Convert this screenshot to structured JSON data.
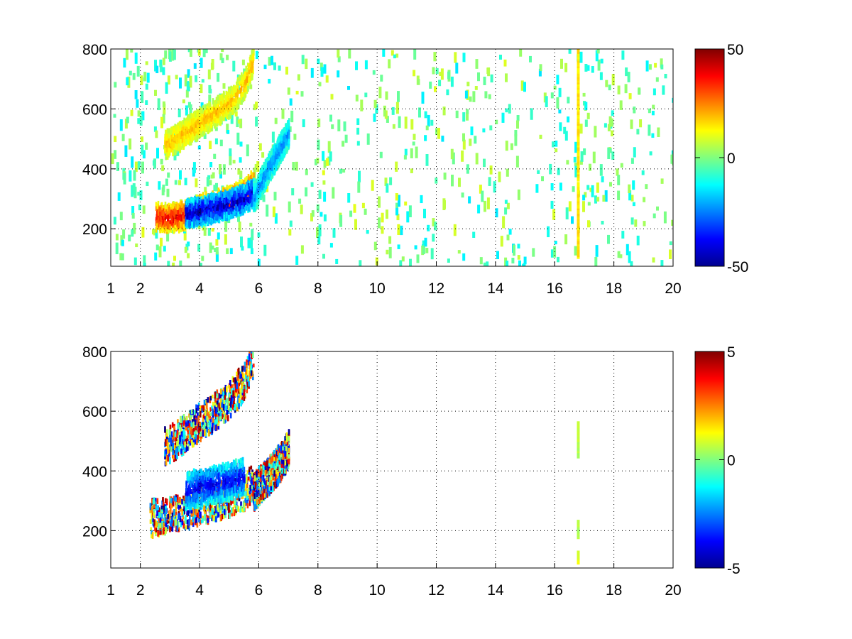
{
  "chart_data": [
    {
      "type": "heatmap",
      "panel": "top",
      "xlim": [
        1,
        20
      ],
      "ylim": [
        75,
        800
      ],
      "xticks": [
        1,
        2,
        4,
        6,
        8,
        10,
        12,
        14,
        16,
        18,
        20
      ],
      "yticks": [
        200,
        400,
        600,
        800
      ],
      "grid": true,
      "colormap": "jet",
      "clim": [
        -50,
        50
      ],
      "colorbar_ticks": [
        "50",
        "0",
        "-50"
      ],
      "colorbar_values": [
        50,
        0,
        -50
      ],
      "features": [
        {
          "kind": "ridge",
          "x": [
            2.5,
            3.0,
            3.5,
            4.0,
            4.5,
            5.0,
            5.5,
            5.8
          ],
          "y": [
            240,
            235,
            245,
            265,
            280,
            295,
            320,
            350
          ],
          "value": 40
        },
        {
          "kind": "ridge",
          "x": [
            3.5,
            4.0,
            4.5,
            5.0,
            5.5,
            5.8
          ],
          "y": [
            250,
            258,
            270,
            282,
            300,
            320
          ],
          "value": -45
        },
        {
          "kind": "ridge",
          "x": [
            2.8,
            3.2,
            3.8,
            4.4,
            5.0,
            5.5,
            5.8
          ],
          "y": [
            480,
            500,
            540,
            580,
            620,
            680,
            760
          ],
          "value": 20
        },
        {
          "kind": "ridge",
          "x": [
            5.8,
            6.2,
            6.6,
            7.0
          ],
          "y": [
            300,
            380,
            450,
            520
          ],
          "value": -25
        },
        {
          "kind": "column",
          "x": 16.8,
          "y_range": [
            90,
            800
          ],
          "value": 15
        }
      ],
      "background_noise": {
        "x_range": [
          1,
          20
        ],
        "value_range": [
          -15,
          10
        ],
        "density": "sparse"
      }
    },
    {
      "type": "heatmap",
      "panel": "bottom",
      "xlim": [
        1,
        20
      ],
      "ylim": [
        75,
        800
      ],
      "xticks": [
        1,
        2,
        4,
        6,
        8,
        10,
        12,
        14,
        16,
        18,
        20
      ],
      "yticks": [
        200,
        400,
        600,
        800
      ],
      "grid": true,
      "colormap": "jet",
      "clim": [
        -5,
        5
      ],
      "colorbar_ticks": [
        "5",
        "0",
        "-5"
      ],
      "colorbar_values": [
        5,
        0,
        -5
      ],
      "features": [
        {
          "kind": "band",
          "x": [
            2.3,
            3.0,
            3.5,
            4.0,
            4.5,
            5.0,
            5.5,
            5.8
          ],
          "y": [
            240,
            250,
            265,
            280,
            295,
            310,
            330,
            360
          ],
          "value": "mixed"
        },
        {
          "kind": "band",
          "x": [
            3.5,
            4.0,
            4.5,
            5.0,
            5.5
          ],
          "y": [
            330,
            345,
            355,
            365,
            380
          ],
          "value": -4
        },
        {
          "kind": "band",
          "x": [
            2.8,
            3.3,
            3.8,
            4.4,
            5.0,
            5.5,
            5.8
          ],
          "y": [
            480,
            510,
            550,
            590,
            640,
            700,
            780
          ],
          "value": "mixed"
        },
        {
          "kind": "band",
          "x": [
            5.8,
            6.3,
            6.8,
            7.0
          ],
          "y": [
            330,
            380,
            440,
            480
          ],
          "value": "mixed"
        },
        {
          "kind": "column",
          "x": 16.8,
          "y_range": [
            450,
            560
          ],
          "value": 0.5
        },
        {
          "kind": "column",
          "x": 16.8,
          "y_range": [
            180,
            230
          ],
          "value": 0.5
        },
        {
          "kind": "column",
          "x": 16.8,
          "y_range": [
            95,
            130
          ],
          "value": 1
        }
      ]
    }
  ]
}
